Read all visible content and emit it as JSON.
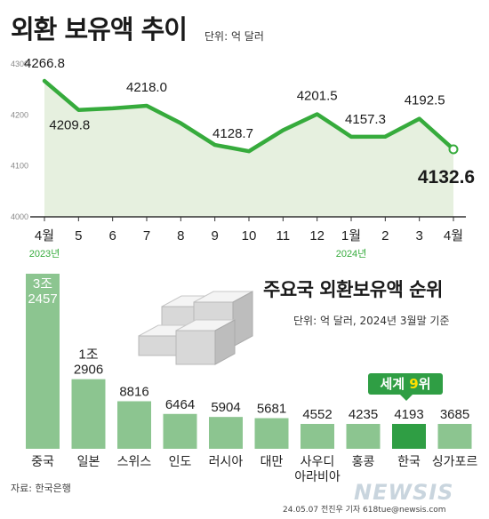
{
  "header": {
    "title": "외환 보유액 추이",
    "unit": "단위: 억 달러"
  },
  "ranking": {
    "title": "주요국 외환보유액 순위",
    "unit": "단위: 억 달러, 2024년 3월말 기준",
    "badge_prefix": "세계 ",
    "badge_rank": "9",
    "badge_suffix": "위"
  },
  "footer": {
    "source": "자료: 한국은행",
    "credit": "24.05.07 전진우 기자 618tue@newsis.com",
    "watermark": "NEWSIS"
  },
  "colors": {
    "line": "#36ab3c",
    "area": "#e6f0df",
    "bar": "#8cc590",
    "bar_highlight": "#2f9e44",
    "axis": "#333333"
  },
  "chart_data": [
    {
      "type": "line",
      "x": [
        "4월",
        "5",
        "6",
        "7",
        "8",
        "9",
        "10",
        "11",
        "12",
        "1월",
        "2",
        "3",
        "4월"
      ],
      "year_labels": [
        {
          "index": 0,
          "text": "2023년"
        },
        {
          "index": 9,
          "text": "2024년"
        }
      ],
      "values": [
        4266.8,
        4209.8,
        4213.0,
        4218.0,
        4183.7,
        4141.2,
        4128.7,
        4170.0,
        4201.5,
        4157.3,
        4157.4,
        4192.5,
        4132.6
      ],
      "labeled_values": [
        {
          "index": 0,
          "text": "4266.8"
        },
        {
          "index": 1,
          "text": "4209.8"
        },
        {
          "index": 3,
          "text": "4218.0"
        },
        {
          "index": 6,
          "text": "4128.7"
        },
        {
          "index": 8,
          "text": "4201.5"
        },
        {
          "index": 9,
          "text": "4157.3"
        },
        {
          "index": 11,
          "text": "4192.5"
        },
        {
          "index": 12,
          "text": "4132.6",
          "emphasis": true
        }
      ],
      "yticks": [
        "4300",
        "4200",
        "4100",
        "4000"
      ],
      "ylim": [
        4000,
        4300
      ],
      "grid": false
    },
    {
      "type": "bar",
      "categories": [
        "중국",
        "일본",
        "스위스",
        "인도",
        "러시아",
        "대만",
        "사우디\n아라비아",
        "홍콩",
        "한국",
        "싱가포르"
      ],
      "values": [
        32457,
        12906,
        8816,
        6464,
        5904,
        5681,
        4552,
        4235,
        4193,
        3685
      ],
      "value_labels": [
        "3조\n2457",
        "1조\n2906",
        "8816",
        "6464",
        "5904",
        "5681",
        "4552",
        "4235",
        "4193",
        "3685"
      ],
      "highlight_index": 8,
      "ylim": [
        0,
        32457
      ]
    }
  ]
}
